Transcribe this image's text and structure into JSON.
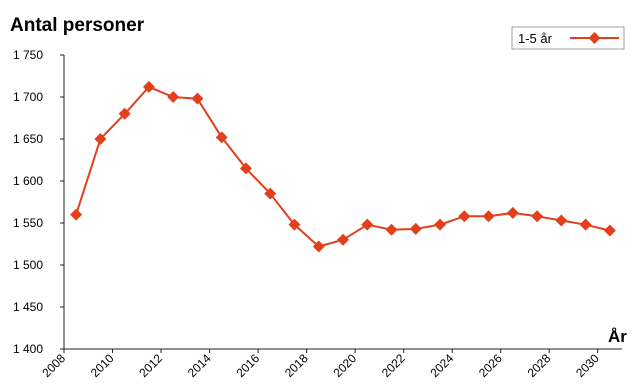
{
  "chart_data": {
    "type": "line",
    "title": "Antal personer",
    "xlabel": "År",
    "ylabel": "",
    "ylim": [
      1400,
      1750
    ],
    "yticks": [
      1400,
      1450,
      1500,
      1550,
      1600,
      1650,
      1700,
      1750
    ],
    "ytick_labels": [
      "1 400",
      "1 450",
      "1 500",
      "1 550",
      "1 600",
      "1 650",
      "1 700",
      "1 750"
    ],
    "xlim": [
      2008,
      2031
    ],
    "xticks": [
      2008,
      2010,
      2012,
      2014,
      2016,
      2018,
      2020,
      2022,
      2024,
      2026,
      2028,
      2030
    ],
    "xtick_labels": [
      "2008",
      "2010",
      "2012",
      "2014",
      "2016",
      "2018",
      "2020",
      "2022",
      "2024",
      "2026",
      "2028",
      "2030"
    ],
    "grid": false,
    "legend_position": "top-right",
    "series": [
      {
        "name": "1-5 år",
        "color": "#e2401c",
        "marker": "diamond",
        "x": [
          2008.5,
          2009.5,
          2010.5,
          2011.5,
          2012.5,
          2013.5,
          2014.5,
          2015.5,
          2016.5,
          2017.5,
          2018.5,
          2019.5,
          2020.5,
          2021.5,
          2022.5,
          2023.5,
          2024.5,
          2025.5,
          2026.5,
          2027.5,
          2028.5,
          2029.5,
          2030.5
        ],
        "values": [
          1560,
          1650,
          1680,
          1712,
          1700,
          1698,
          1652,
          1615,
          1585,
          1548,
          1522,
          1530,
          1548,
          1542,
          1543,
          1548,
          1558,
          1558,
          1562,
          1558,
          1553,
          1548,
          1541
        ]
      }
    ]
  }
}
